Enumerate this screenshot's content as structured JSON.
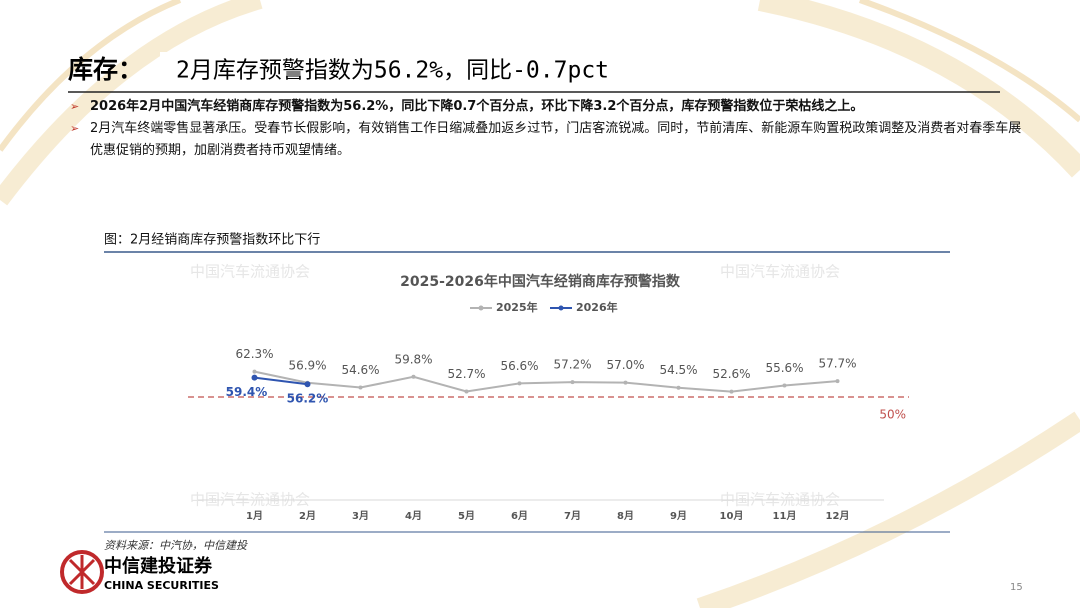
{
  "header": {
    "label": "库存：",
    "title": "2月库存预警指数为56.2%，同比-0.7pct"
  },
  "bullets": [
    "2026年2月中国汽车经销商库存预警指数为56.2%，同比下降0.7个百分点，环比下降3.2个百分点，库存预警指数位于荣枯线之上。",
    "2月汽车终端零售显著承压。受春节长假影响，有效销售工作日缩减叠加返乡过节，门店客流锐减。同时，节前清库、新能源车购置税政策调整及消费者对春季车展优惠促销的预期，加剧消费者持币观望情绪。"
  ],
  "figure_caption": "图：2月经销商库存预警指数环比下行",
  "watermark": "中国汽车流通协会",
  "chart_data": {
    "type": "line",
    "title": "2025-2026年中国汽车经销商库存预警指数",
    "categories": [
      "1月",
      "2月",
      "3月",
      "4月",
      "5月",
      "6月",
      "7月",
      "8月",
      "9月",
      "10月",
      "11月",
      "12月"
    ],
    "series": [
      {
        "name": "2025年",
        "color": "#b3b3b3",
        "values": [
          62.3,
          56.9,
          54.6,
          59.8,
          52.7,
          56.6,
          57.2,
          57.0,
          54.5,
          52.6,
          55.6,
          57.7
        ],
        "value_labels": [
          "62.3%",
          "56.9%",
          "54.6%",
          "59.8%",
          "52.7%",
          "56.6%",
          "57.2%",
          "57.0%",
          "54.5%",
          "52.6%",
          "55.6%",
          "57.7%"
        ]
      },
      {
        "name": "2026年",
        "color": "#2f55b0",
        "values": [
          59.4,
          56.2,
          null,
          null,
          null,
          null,
          null,
          null,
          null,
          null,
          null,
          null
        ],
        "value_labels": [
          "59.4%",
          "56.2%",
          null,
          null,
          null,
          null,
          null,
          null,
          null,
          null,
          null,
          null
        ]
      }
    ],
    "reference_line": {
      "value": 50,
      "label": "50%",
      "color": "#c0504d"
    },
    "ylim": [
      0,
      100
    ],
    "legend": "top"
  },
  "footer": {
    "source": "资料来源：中汽协，中信建投",
    "brand": "中信建投证券",
    "brand_en": "CHINA SECURITIES",
    "page": "15"
  }
}
